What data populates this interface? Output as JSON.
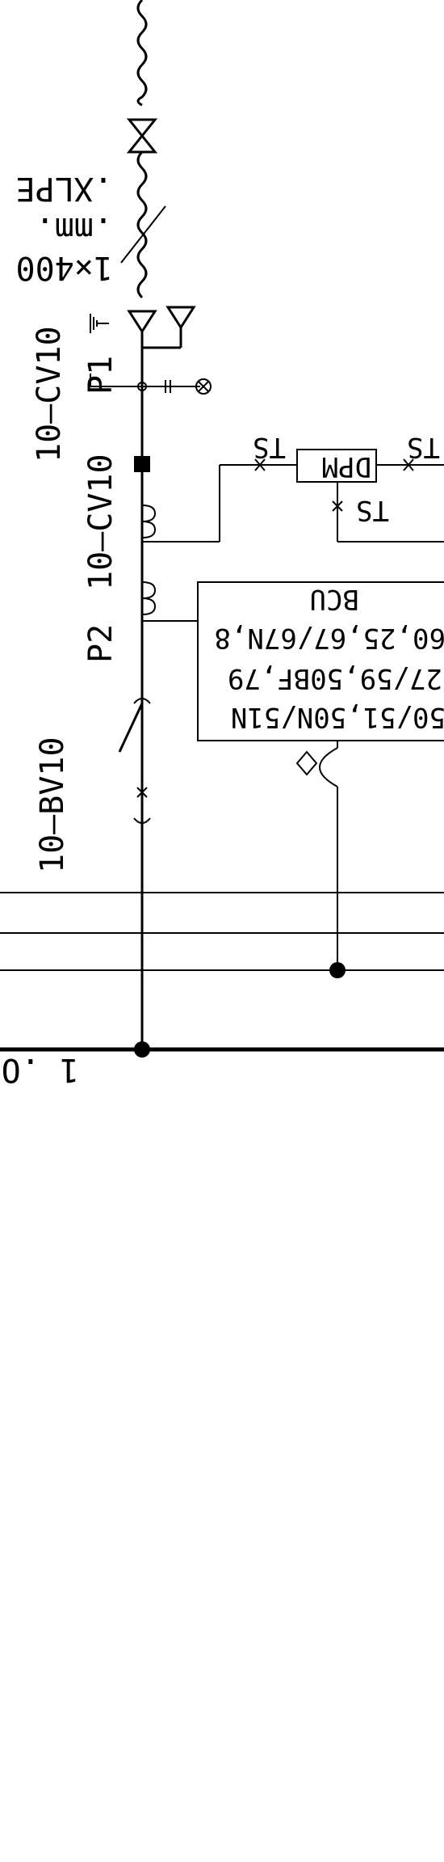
{
  "labels": {
    "cable_type": "1×400",
    "cable_unit": ".mm.",
    "cable_insulation": ".XLPE",
    "vt_tag": "10–CV10",
    "vt_suffix": "P1",
    "ct_tag": "10–CV10",
    "ct_suffix": "P2",
    "breaker_tag": "10–BV10",
    "dpm": "DPM",
    "ts_left": "TS",
    "ts_right": "TS",
    "ts_bottom": "TS",
    "bcu": "BCU",
    "protection_line1": "60,25,67/67N,8",
    "protection_line2": "27/59,50BF,79",
    "protection_line3": "50/51,50N/51N",
    "bus_label": "1 .O"
  },
  "colors": {
    "line": "#000000",
    "background": "#ffffff"
  }
}
